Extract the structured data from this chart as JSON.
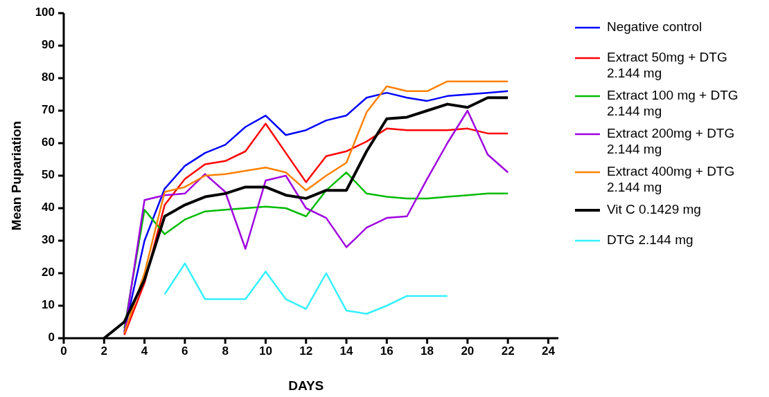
{
  "chart_data": {
    "type": "line",
    "xlabel": "DAYS",
    "ylabel": "Mean Pupariation",
    "xlim": [
      0,
      24.5
    ],
    "ylim": [
      0,
      100
    ],
    "xticks": [
      0,
      2,
      4,
      6,
      8,
      10,
      12,
      14,
      16,
      18,
      20,
      22,
      24
    ],
    "yticks": [
      0,
      10,
      20,
      30,
      40,
      50,
      60,
      70,
      80,
      90,
      100
    ],
    "grid": false,
    "legend": "right",
    "marker": "none",
    "line_style": "solid",
    "series": [
      {
        "name": "Negative control",
        "color": "#0000ff",
        "x": [
          3,
          4,
          5,
          6,
          7,
          8,
          9,
          10,
          11,
          12,
          13,
          14,
          15,
          16,
          17,
          18,
          19,
          20,
          21,
          22
        ],
        "values": [
          2,
          30,
          46,
          53,
          57,
          59.5,
          65,
          68.5,
          62.5,
          64,
          67,
          68.5,
          74,
          75.5,
          74,
          73,
          74.5,
          75,
          75.5,
          76
        ]
      },
      {
        "name": "Extract 50mg + DTG 2.144 mg",
        "color": "#ff0000",
        "x": [
          3,
          4,
          5,
          6,
          7,
          8,
          9,
          10,
          11,
          12,
          13,
          14,
          15,
          16,
          17,
          18,
          19,
          20,
          21,
          22
        ],
        "values": [
          1,
          17,
          41,
          49,
          53.5,
          54.5,
          57.5,
          66,
          57,
          48,
          56,
          57.5,
          60.5,
          64.5,
          64,
          64,
          64,
          64.5,
          63,
          63
        ]
      },
      {
        "name": "Extract 100 mg + DTG 2.144 mg",
        "color": "#00bb00",
        "x": [
          3,
          4,
          5,
          6,
          7,
          8,
          9,
          10,
          11,
          12,
          13,
          14,
          15,
          16,
          17,
          18,
          19,
          20,
          21,
          22
        ],
        "values": [
          3,
          39.5,
          32,
          36.5,
          39,
          39.5,
          40,
          40.5,
          40,
          37.5,
          45.5,
          51,
          44.5,
          43.5,
          43,
          43,
          43.5,
          44,
          44.5,
          44.5
        ]
      },
      {
        "name": "Extract 200mg + DTG 2.144 mg",
        "color": "#a000e0",
        "x": [
          3,
          4,
          5,
          6,
          7,
          8,
          9,
          10,
          11,
          12,
          13,
          14,
          15,
          16,
          17,
          18,
          19,
          20,
          21,
          22
        ],
        "values": [
          1.5,
          42.5,
          44,
          44.5,
          50.5,
          45,
          27.5,
          48.5,
          50,
          40,
          37,
          28,
          34,
          37,
          37.5,
          49,
          60,
          70,
          56.5,
          51
        ]
      },
      {
        "name": "Extract 400mg + DTG 2.144 mg",
        "color": "#ff8000",
        "x": [
          3,
          4,
          5,
          6,
          7,
          8,
          9,
          10,
          11,
          12,
          13,
          14,
          15,
          16,
          17,
          18,
          19,
          20,
          21,
          22
        ],
        "values": [
          1.5,
          20,
          45,
          46.5,
          50,
          50.5,
          51.5,
          52.5,
          51,
          45.5,
          50,
          54,
          69.5,
          77.5,
          76,
          76,
          79,
          79,
          79,
          79
        ]
      },
      {
        "name": "Vit C 0.1429 mg",
        "color": "#000000",
        "x": [
          2,
          3,
          4,
          5,
          6,
          7,
          8,
          9,
          10,
          11,
          12,
          13,
          14,
          15,
          16,
          17,
          18,
          19,
          20,
          21,
          22
        ],
        "values": [
          0,
          5,
          18,
          37.5,
          41,
          43.5,
          44.5,
          46.5,
          46.5,
          44,
          43,
          45.5,
          45.5,
          57.5,
          67.5,
          68,
          70,
          72,
          71,
          74,
          74
        ]
      },
      {
        "name": "DTG 2.144 mg",
        "color": "#33f0ff",
        "x": [
          5,
          6,
          7,
          8,
          9,
          10,
          11,
          12,
          13,
          14,
          15,
          16,
          17,
          18,
          19
        ],
        "values": [
          13.5,
          23,
          12,
          12,
          12,
          20.5,
          12,
          9,
          20,
          8.5,
          7.5,
          10,
          13,
          13,
          13
        ]
      }
    ]
  }
}
